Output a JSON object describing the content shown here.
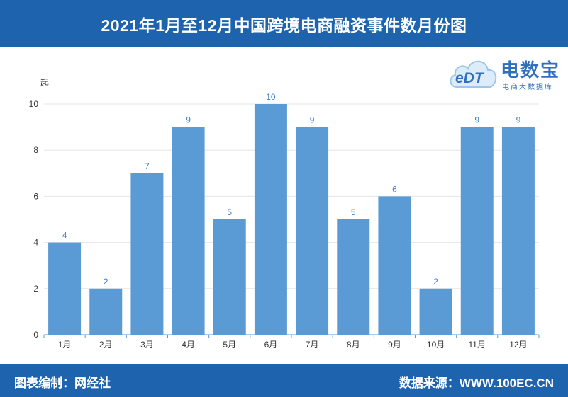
{
  "header": {
    "title": "2021年1月至12月中国跨境电商融资事件数月份图"
  },
  "logo": {
    "brand": "电数宝",
    "subtitle": "电商大数据库",
    "mark": "eDT"
  },
  "footer": {
    "left": "图表编制：网经社",
    "right": "数据来源：WWW.100EC.CN"
  },
  "colors": {
    "header_bg": "#1d63ad",
    "bar": "#5b9bd5",
    "label": "#3a7fcb"
  },
  "chart_data": {
    "type": "bar",
    "unit_label": "起",
    "categories": [
      "1月",
      "2月",
      "3月",
      "4月",
      "5月",
      "6月",
      "7月",
      "8月",
      "9月",
      "10月",
      "11月",
      "12月"
    ],
    "values": [
      4,
      2,
      7,
      9,
      5,
      10,
      9,
      5,
      6,
      2,
      9,
      9
    ],
    "yticks": [
      0,
      2,
      4,
      6,
      8,
      10
    ],
    "ylim": [
      0,
      10
    ],
    "grid": true
  }
}
